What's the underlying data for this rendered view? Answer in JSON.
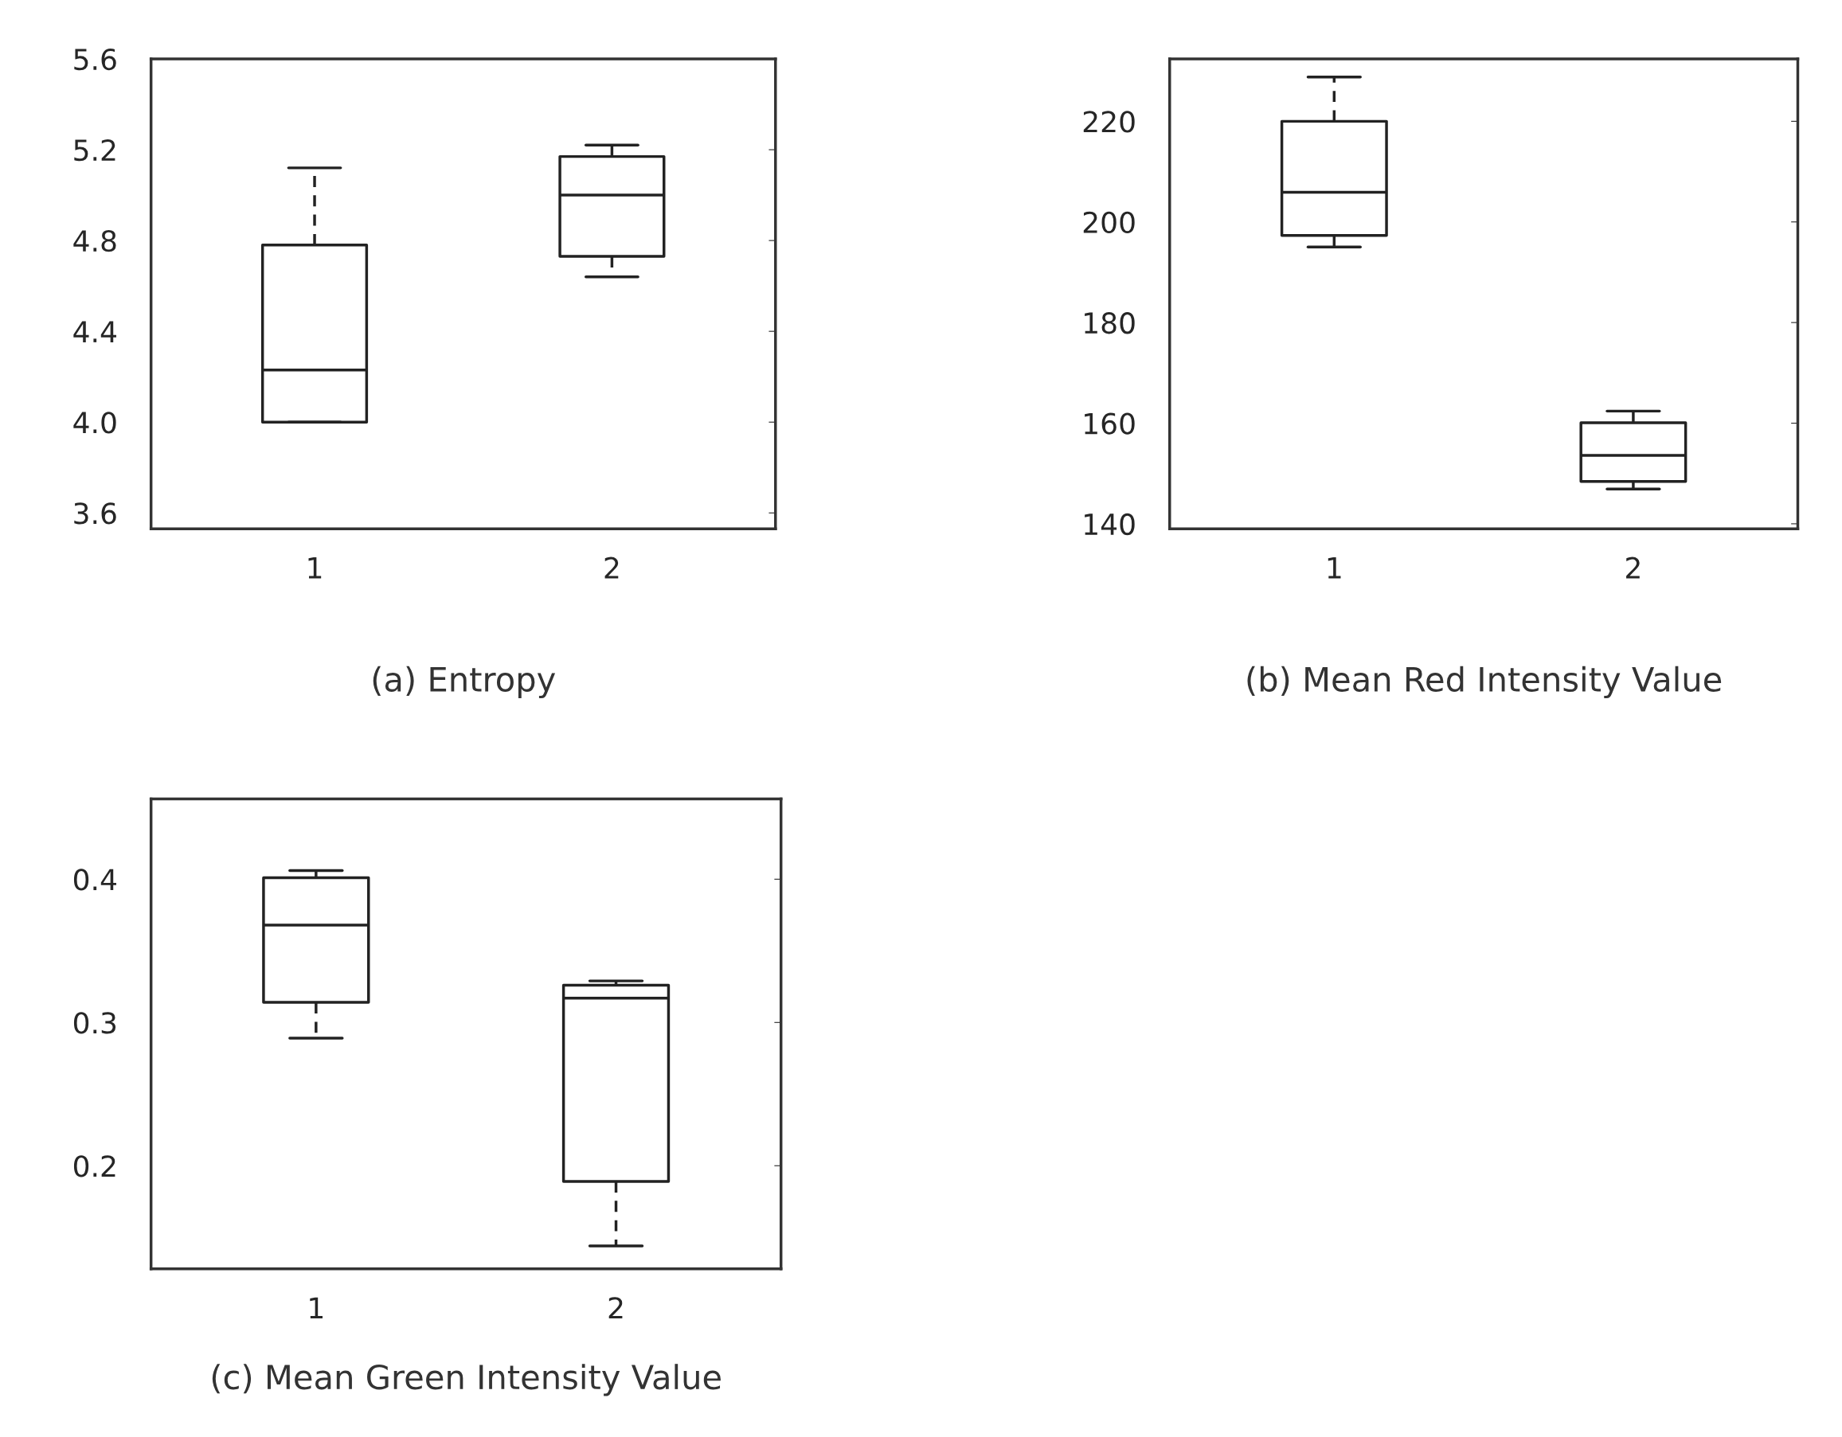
{
  "chart_data": [
    {
      "type": "box",
      "title": "(a) Entropy",
      "categories": [
        "1",
        "2"
      ],
      "ylim": [
        3.53,
        5.6
      ],
      "yticks": [
        {
          "value": 3.6,
          "label": "3.6"
        },
        {
          "value": 4.0,
          "label": "4.0"
        },
        {
          "value": 4.4,
          "label": "4.4"
        },
        {
          "value": 4.8,
          "label": "4.8"
        },
        {
          "value": 5.2,
          "label": "5.2"
        },
        {
          "value": 5.6,
          "label": "5.6"
        }
      ],
      "boxes": [
        {
          "low": 4.0,
          "q1": 4.0,
          "median": 4.23,
          "q3": 4.78,
          "high": 5.12
        },
        {
          "low": 4.64,
          "q1": 4.73,
          "median": 5.0,
          "q3": 5.17,
          "high": 5.22
        }
      ]
    },
    {
      "type": "box",
      "title": "(b) Mean Red Intensity Value",
      "categories": [
        "1",
        "2"
      ],
      "ylim": [
        139,
        232.4
      ],
      "yticks": [
        140,
        160,
        180,
        200,
        220
      ],
      "boxes": [
        {
          "low": 195,
          "q1": 197.3,
          "median": 205.9,
          "q3": 220,
          "high": 228.8
        },
        {
          "low": 146.9,
          "q1": 148.4,
          "median": 153.6,
          "q3": 160.1,
          "high": 162.4
        }
      ]
    },
    {
      "type": "box",
      "title": "(c) Mean Green Intensity Value",
      "categories": [
        "1",
        "2"
      ],
      "ylim": [
        0.128,
        0.456
      ],
      "yticks": [
        0.2,
        0.3,
        0.4
      ],
      "boxes": [
        {
          "low": 0.289,
          "q1": 0.314,
          "median": 0.368,
          "q3": 0.401,
          "high": 0.406
        },
        {
          "low": 0.144,
          "q1": 0.189,
          "median": 0.317,
          "q3": 0.326,
          "high": 0.329
        }
      ]
    }
  ]
}
